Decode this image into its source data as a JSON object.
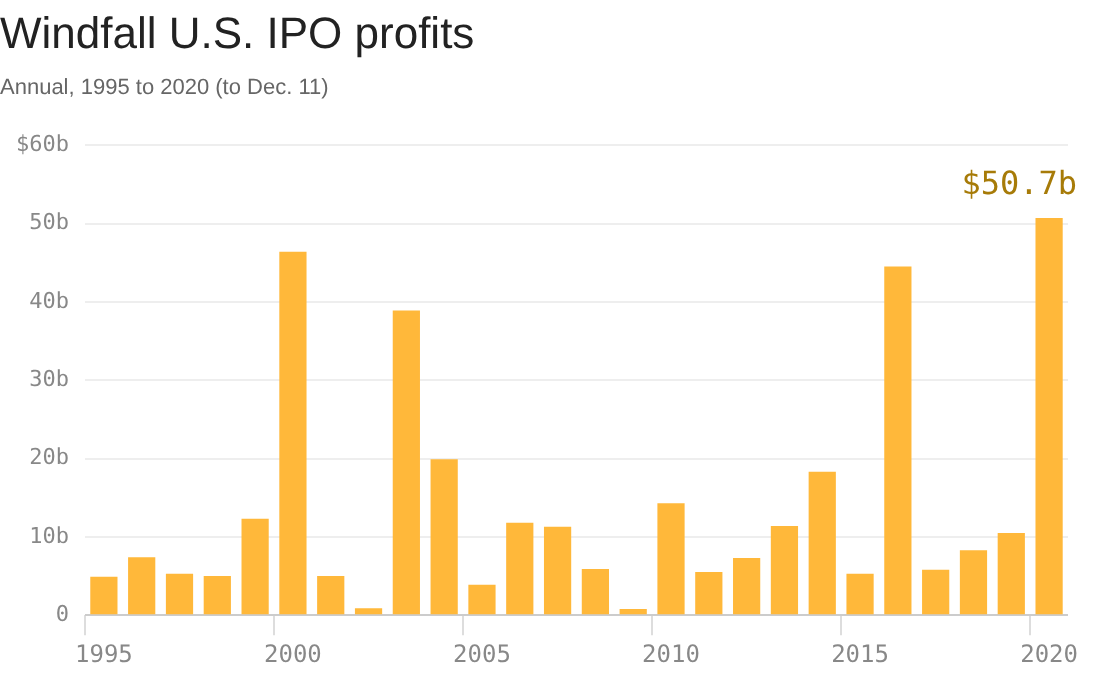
{
  "chart_data": {
    "type": "bar",
    "title": "Windfall U.S. IPO profits",
    "subtitle": "Annual, 1995 to 2020 (to Dec. 11)",
    "categories": [
      "1995",
      null,
      null,
      null,
      null,
      "2000",
      null,
      null,
      null,
      null,
      "2005",
      null,
      null,
      null,
      null,
      "2010",
      null,
      null,
      null,
      null,
      "2015",
      null,
      null,
      null,
      null,
      "2020"
    ],
    "values": [
      4.9,
      7.4,
      5.3,
      5.0,
      12.3,
      46.4,
      5.0,
      0.9,
      38.9,
      19.9,
      3.9,
      11.8,
      11.3,
      5.9,
      0.8,
      14.3,
      5.5,
      7.3,
      11.4,
      18.3,
      5.3,
      44.5,
      5.8,
      8.3,
      10.5,
      50.7
    ],
    "value_labels": [
      null,
      null,
      null,
      null,
      null,
      null,
      null,
      null,
      null,
      null,
      null,
      null,
      null,
      null,
      null,
      null,
      null,
      null,
      null,
      null,
      null,
      null,
      null,
      null,
      null,
      "$50.7b"
    ],
    "color": "#ffb83a",
    "ylim": [
      0,
      60
    ],
    "yticks": [
      {
        "value": 0,
        "label": "0"
      },
      {
        "value": 10,
        "label": "10b"
      },
      {
        "value": 20,
        "label": "20b"
      },
      {
        "value": 30,
        "label": "30b"
      },
      {
        "value": 40,
        "label": "40b"
      },
      {
        "value": 50,
        "label": "50b"
      },
      {
        "value": 60,
        "label": "$60b"
      }
    ],
    "grid": "y",
    "legend": false
  }
}
